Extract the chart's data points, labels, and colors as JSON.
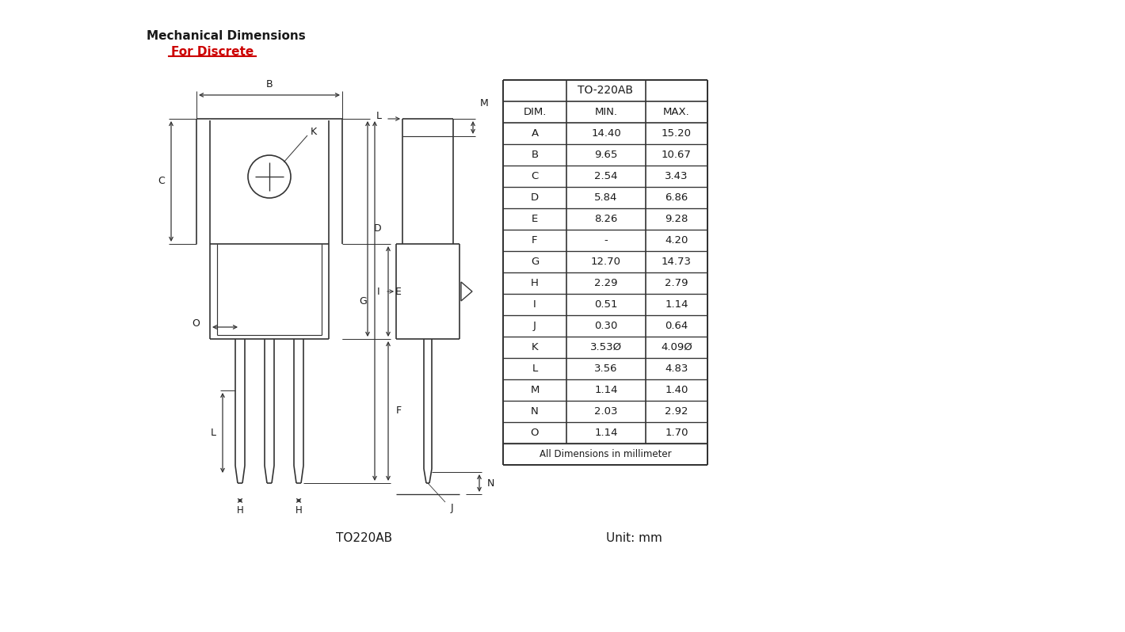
{
  "title1": "Mechanical Dimensions",
  "title2": "For Discrete",
  "package_label": "TO220AB",
  "unit_label": "Unit: mm",
  "bg_color": "#ffffff",
  "text_color": "#1a1a1a",
  "red_color": "#cc0000",
  "line_color": "#333333",
  "table_header": "TO-220AB",
  "col_headers": [
    "DIM.",
    "MIN.",
    "MAX."
  ],
  "rows": [
    [
      "A",
      "14.40",
      "15.20"
    ],
    [
      "B",
      "9.65",
      "10.67"
    ],
    [
      "C",
      "2.54",
      "3.43"
    ],
    [
      "D",
      "5.84",
      "6.86"
    ],
    [
      "E",
      "8.26",
      "9.28"
    ],
    [
      "F",
      "-",
      "4.20"
    ],
    [
      "G",
      "12.70",
      "14.73"
    ],
    [
      "H",
      "2.29",
      "2.79"
    ],
    [
      "I",
      "0.51",
      "1.14"
    ],
    [
      "J",
      "0.30",
      "0.64"
    ],
    [
      "K",
      "3.53Ø",
      "4.09Ø"
    ],
    [
      "L",
      "3.56",
      "4.83"
    ],
    [
      "M",
      "1.14",
      "1.40"
    ],
    [
      "N",
      "2.03",
      "2.92"
    ],
    [
      "O",
      "1.14",
      "1.70"
    ]
  ],
  "footer": "All Dimensions in millimeter"
}
